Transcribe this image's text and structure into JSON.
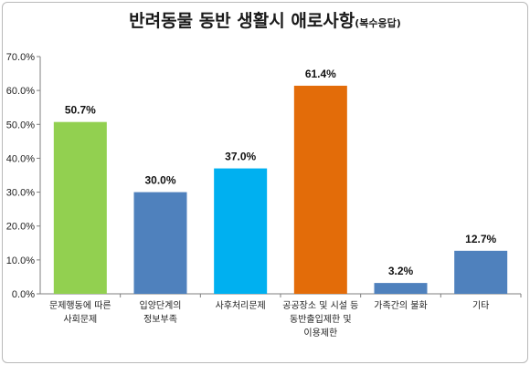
{
  "chart_data": {
    "type": "bar",
    "title": "반려동물 동반 생활시 애로사항",
    "subtitle": "(복수응답)",
    "categories": [
      [
        "문제행동에 따른",
        "사회문제"
      ],
      [
        "입양단계의",
        "정보부족"
      ],
      [
        "사후처리문제"
      ],
      [
        "공공장소 및 시설 등",
        "동반출입제한 및",
        "이용제한"
      ],
      [
        "가족간의 불화"
      ],
      [
        "기타"
      ]
    ],
    "values": [
      50.7,
      30.0,
      37.0,
      61.4,
      3.2,
      12.7
    ],
    "value_labels": [
      "50.7%",
      "30.0%",
      "37.0%",
      "61.4%",
      "3.2%",
      "12.7%"
    ],
    "bar_colors": [
      "#92d050",
      "#4f81bd",
      "#00b0f0",
      "#e36c09",
      "#4f81bd",
      "#4f81bd"
    ],
    "ylim": [
      0,
      70
    ],
    "yticks": [
      "0.0%",
      "10.0%",
      "20.0%",
      "30.0%",
      "40.0%",
      "50.0%",
      "60.0%",
      "70.0%"
    ],
    "xlabel": "",
    "ylabel": "",
    "grid": false,
    "legend": "none"
  }
}
